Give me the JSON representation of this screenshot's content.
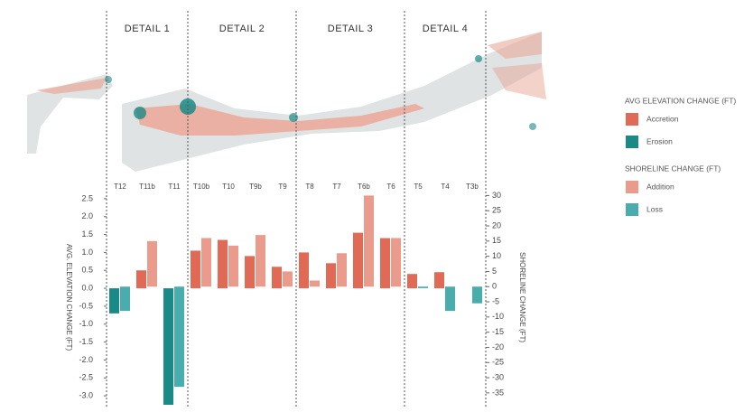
{
  "chart_data": {
    "type": "bar",
    "details": [
      "DETAIL 1",
      "DETAIL 2",
      "DETAIL 3",
      "DETAIL 4"
    ],
    "categories": [
      "T12",
      "T11b",
      "T11",
      "T10b",
      "T10",
      "T9b",
      "T9",
      "T8",
      "T7",
      "T6b",
      "T6",
      "T5",
      "T4",
      "T3b"
    ],
    "series": [
      {
        "name": "AVG ELEVATION CHANGE (FT)",
        "axis": "y",
        "positive": {
          "name": "Accretion",
          "color": "#e06a55"
        },
        "negative": {
          "name": "Erosion",
          "color": "#1a8a86"
        },
        "values": [
          -0.7,
          0.5,
          -3.25,
          1.05,
          1.35,
          0.9,
          0.6,
          1.0,
          0.7,
          1.55,
          1.4,
          0.4,
          0.45,
          null
        ]
      },
      {
        "name": "SHORELINE CHANGE (FT)",
        "axis": "y2",
        "positive": {
          "name": "Addition",
          "color": "#eb9b8c"
        },
        "negative": {
          "name": "Loss",
          "color": "#4aadad"
        },
        "values": [
          -8,
          15,
          -33,
          16,
          13.5,
          17,
          5,
          2,
          11,
          30,
          16,
          -0.5,
          -8,
          -5.5
        ]
      }
    ],
    "ylabel": "AVG. ELEVATION CHANGE (FT)",
    "y2label": "SHORELINE CHANGE (FT)",
    "ylim": [
      -3.3,
      2.8
    ],
    "yticks": [
      2.5,
      {
        "value": 2,
        "label": "2.0"
      },
      1.5,
      {
        "value": 1,
        "label": "1.0"
      },
      0.5,
      {
        "value": 0,
        "label": "0.0"
      },
      -0.5,
      {
        "value": -1,
        "label": "-1.0"
      },
      -1.5,
      {
        "value": -2,
        "label": "-2.0"
      },
      -2.5,
      {
        "value": -3,
        "label": "-3.0"
      }
    ],
    "y2lim": [
      -39.5,
      32.5
    ],
    "y2ticks": [
      30,
      25,
      20,
      15,
      10,
      5,
      0,
      -5,
      -10,
      -15,
      -20,
      -25,
      -30,
      -35
    ]
  }
}
